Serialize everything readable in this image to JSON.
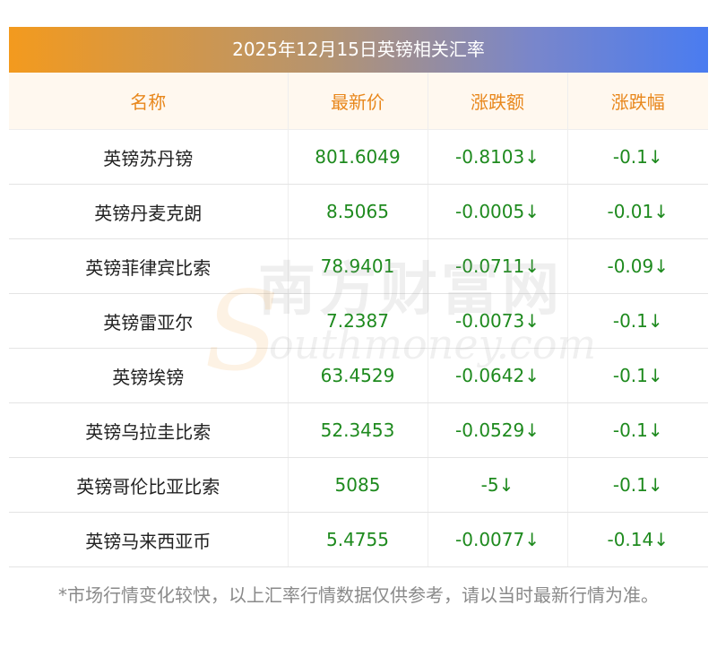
{
  "title": "2025年12月15日英镑相关汇率",
  "headers": [
    "名称",
    "最新价",
    "涨跌额",
    "涨跌幅"
  ],
  "rows": [
    {
      "name": "英镑苏丹镑",
      "price": "801.6049",
      "change": "-0.8103↓",
      "pct": "-0.1↓"
    },
    {
      "name": "英镑丹麦克朗",
      "price": "8.5065",
      "change": "-0.0005↓",
      "pct": "-0.01↓"
    },
    {
      "name": "英镑菲律宾比索",
      "price": "78.9401",
      "change": "-0.0711↓",
      "pct": "-0.09↓"
    },
    {
      "name": "英镑雷亚尔",
      "price": "7.2387",
      "change": "-0.0073↓",
      "pct": "-0.1↓"
    },
    {
      "name": "英镑埃镑",
      "price": "63.4529",
      "change": "-0.0642↓",
      "pct": "-0.1↓"
    },
    {
      "name": "英镑乌拉圭比索",
      "price": "52.3453",
      "change": "-0.0529↓",
      "pct": "-0.1↓"
    },
    {
      "name": "英镑哥伦比亚比索",
      "price": "5085",
      "change": "-5↓",
      "pct": "-0.1↓"
    },
    {
      "name": "英镑马来西亚币",
      "price": "5.4755",
      "change": "-0.0077↓",
      "pct": "-0.14↓"
    }
  ],
  "note": "*市场行情变化较快，以上汇率行情数据仅供参考，请以当时最新行情为准。",
  "watermark": {
    "cn": "南方财富网",
    "en": "Southmoney.com"
  },
  "colors": {
    "header_text": "#e8871c",
    "value_text": "#1e8a1e",
    "header_bg": "#fff8ef"
  }
}
